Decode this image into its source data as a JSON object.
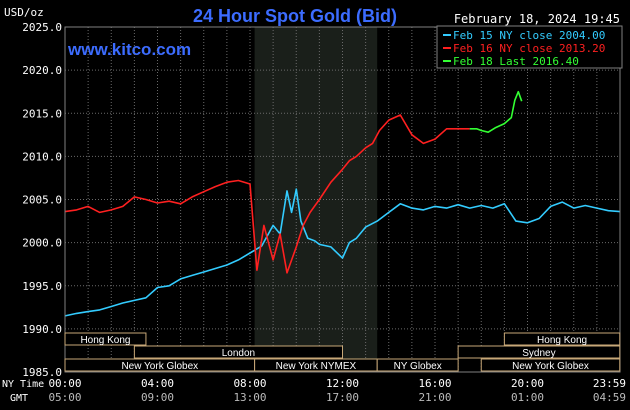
{
  "header": {
    "title": "24 Hour Spot Gold (Bid)",
    "unit": "USD/oz",
    "site": "www.kitco.com",
    "datetime": "February 18, 2024 19:45"
  },
  "legend": [
    {
      "text": "Feb 15 NY close 2004.00",
      "color": "#33ccff"
    },
    {
      "text": "Feb 16 NY close 2013.20",
      "color": "#ff2020"
    },
    {
      "text": "Feb 18 Last 2016.40",
      "color": "#33ff33"
    }
  ],
  "axis": {
    "nytime_label": "NY Time",
    "gmt_label": "GMT",
    "nytime_ticks": [
      "00:00",
      "04:00",
      "08:00",
      "12:00",
      "16:00",
      "20:00",
      "23:59"
    ],
    "gmt_ticks": [
      "05:00",
      "09:00",
      "13:00",
      "17:00",
      "21:00",
      "01:00",
      "04:59"
    ],
    "ytick_labels": [
      "2025.0",
      "2020.0",
      "2015.0",
      "2010.0",
      "2005.0",
      "2000.0",
      "1995.0",
      "1990.0",
      "1985.0"
    ]
  },
  "sessions": [
    {
      "label": "Hong Kong",
      "start_hour": 0,
      "end_hour": 3.5,
      "row": 0
    },
    {
      "label": "Hong Kong",
      "start_hour": 19,
      "end_hour": 23.99,
      "row": 0
    },
    {
      "label": "London",
      "start_hour": 3,
      "end_hour": 12,
      "row": 1
    },
    {
      "label": "Sydney",
      "start_hour": 17,
      "end_hour": 23.99,
      "row": 1
    },
    {
      "label": "New York Globex",
      "start_hour": 0,
      "end_hour": 8.2,
      "row": 2
    },
    {
      "label": "New York NYMEX",
      "start_hour": 8.2,
      "end_hour": 13.5,
      "row": 2
    },
    {
      "label": "NY Globex",
      "start_hour": 13.5,
      "end_hour": 17,
      "row": 2
    },
    {
      "label": "New York Globex",
      "start_hour": 18,
      "end_hour": 23.99,
      "row": 2
    }
  ],
  "chart_data": {
    "type": "line",
    "title": "24 Hour Spot Gold (Bid)",
    "ylabel": "USD/oz",
    "xlabel": "NY Time",
    "xlim": [
      0,
      24
    ],
    "ylim": [
      1985,
      2025
    ],
    "ytick_step": 5,
    "grid": true,
    "highlight_range_hours": [
      8.2,
      13.5
    ],
    "legend_position": "top-right",
    "series": [
      {
        "name": "Feb 15 NY close 2004.00",
        "color": "#33ccff",
        "x": [
          0,
          0.5,
          1,
          1.5,
          2,
          2.5,
          3,
          3.5,
          4,
          4.5,
          5,
          5.5,
          6,
          6.5,
          7,
          7.5,
          8,
          8.5,
          9,
          9.3,
          9.6,
          9.8,
          10,
          10.2,
          10.5,
          10.8,
          11,
          11.5,
          12,
          12.3,
          12.6,
          13,
          13.5,
          14,
          14.5,
          15,
          15.5,
          16,
          16.5,
          17,
          17.5,
          18,
          18.5,
          19,
          19.5,
          20,
          20.5,
          21,
          21.5,
          22,
          22.5,
          23,
          23.5,
          24
        ],
        "y": [
          1991.5,
          1991.8,
          1992.0,
          1992.2,
          1992.6,
          1993.0,
          1993.3,
          1993.6,
          1994.8,
          1995.0,
          1995.8,
          1996.2,
          1996.6,
          1997.0,
          1997.4,
          1998.0,
          1998.8,
          1999.6,
          2002.0,
          2001.0,
          2006.0,
          2003.5,
          2006.2,
          2002.5,
          2000.5,
          2000.2,
          1999.8,
          1999.5,
          1998.2,
          2000.0,
          2000.5,
          2001.8,
          2002.5,
          2003.5,
          2004.5,
          2004.0,
          2003.8,
          2004.2,
          2004.0,
          2004.4,
          2004.0,
          2004.3,
          2004.0,
          2004.5,
          2002.5,
          2002.3,
          2002.8,
          2004.2,
          2004.7,
          2004.0,
          2004.3,
          2004.0,
          2003.7,
          2003.6
        ]
      },
      {
        "name": "Feb 16 NY close 2013.20",
        "color": "#ff2020",
        "x": [
          0,
          0.5,
          1,
          1.5,
          2,
          2.5,
          3,
          3.5,
          4,
          4.5,
          5,
          5.5,
          6,
          6.5,
          7,
          7.5,
          8,
          8.3,
          8.6,
          9,
          9.3,
          9.6,
          10,
          10.3,
          10.6,
          11,
          11.5,
          12,
          12.3,
          12.6,
          13,
          13.3,
          13.6,
          14,
          14.5,
          15,
          15.5,
          16,
          16.5,
          17,
          17.5
        ],
        "y": [
          2003.6,
          2003.8,
          2004.2,
          2003.5,
          2003.8,
          2004.2,
          2005.3,
          2005.0,
          2004.6,
          2004.8,
          2004.5,
          2005.3,
          2005.9,
          2006.5,
          2007.0,
          2007.2,
          2006.8,
          1996.8,
          2002.0,
          1998.0,
          2001.0,
          1996.5,
          1999.5,
          2002.0,
          2003.5,
          2005.0,
          2007.0,
          2008.5,
          2009.5,
          2010.0,
          2011.0,
          2011.5,
          2013.0,
          2014.2,
          2014.8,
          2012.5,
          2011.5,
          2012.0,
          2013.2,
          2013.2,
          2013.2
        ]
      },
      {
        "name": "Feb 18 Last 2016.40",
        "color": "#33ff33",
        "x": [
          17.5,
          17.8,
          18,
          18.3,
          18.6,
          19,
          19.3,
          19.45,
          19.6,
          19.75
        ],
        "y": [
          2013.2,
          2013.2,
          2013.0,
          2012.8,
          2013.3,
          2013.8,
          2014.5,
          2016.5,
          2017.5,
          2016.4
        ]
      }
    ]
  }
}
